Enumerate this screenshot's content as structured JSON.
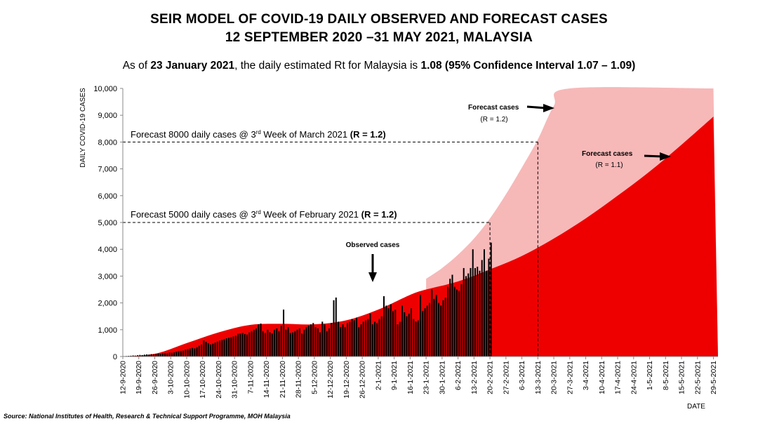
{
  "header": {
    "title_line1": "SEIR MODEL OF COVID-19 DAILY OBSERVED AND FORECAST CASES",
    "title_line2": "12 SEPTEMBER 2020 –31 MAY 2021, MALAYSIA",
    "subtitle_pre": "As of ",
    "subtitle_date": "23 January 2021",
    "subtitle_mid": ", the daily estimated Rt for Malaysia is ",
    "subtitle_rt": "1.08 (95% Confidence Interval 1.07 – 1.09)"
  },
  "source": "Source: National Institutes of Health, Research & Technical Support Programme, MOH Malaysia",
  "colors": {
    "forecast_r12": "#f7b8b8",
    "forecast_r11": "#ee0000",
    "observed_bar": "#000000"
  },
  "chart_data": {
    "type": "bar",
    "ylabel": "DAILY COVID-19 CASES",
    "xlabel": "DATE",
    "ylim": [
      0,
      10000
    ],
    "y_ticks": [
      "0",
      "1,000",
      "2,000",
      "3,000",
      "4,000",
      "5,000",
      "6,000",
      "7,000",
      "8,000",
      "9,000",
      "10,000"
    ],
    "x_tick_labels": [
      "12-9-2020",
      "19-9-2020",
      "26-9-2020",
      "3-10-2020",
      "10-10-2020",
      "17-10-2020",
      "24-10-2020",
      "31-10-2020",
      "7-11-2020",
      "14-11-2020",
      "21-11-2020",
      "28-11-2020",
      "5-12-2020",
      "12-12-2020",
      "19-12-2020",
      "26-12-2020",
      "2-1-2021",
      "9-1-2021",
      "16-1-2021",
      "23-1-2021",
      "30-1-2021",
      "6-2-2021",
      "13-2-2021",
      "20-2-2021",
      "27-2-2021",
      "6-3-2021",
      "13-3-2021",
      "20-3-2021",
      "27-3-2021",
      "3-4-2021",
      "10-4-2021",
      "17-4-2021",
      "24-4-2021",
      "1-5-2021",
      "8-5-2021",
      "15-5-2021",
      "22-5-2021",
      "29-5-2021"
    ],
    "observed_cases": [
      15,
      20,
      25,
      30,
      40,
      35,
      50,
      60,
      55,
      70,
      80,
      75,
      90,
      85,
      100,
      110,
      95,
      120,
      130,
      125,
      150,
      140,
      160,
      180,
      200,
      210,
      220,
      260,
      280,
      300,
      320,
      300,
      350,
      400,
      450,
      600,
      550,
      500,
      450,
      480,
      520,
      560,
      600,
      620,
      650,
      680,
      700,
      720,
      750,
      780,
      850,
      860,
      880,
      840,
      820,
      900,
      950,
      1000,
      1050,
      1200,
      1230,
      950,
      880,
      1000,
      900,
      860,
      1000,
      1050,
      950,
      1150,
      1750,
      1000,
      1100,
      880,
      900,
      950,
      1000,
      1050,
      850,
      1000,
      1100,
      1150,
      1200,
      1250,
      1100,
      1050,
      900,
      1300,
      1200,
      950,
      1050,
      1250,
      2100,
      2200,
      1300,
      1100,
      1200,
      1100,
      1250,
      1300,
      1400,
      1350,
      1450,
      1100,
      1200,
      1300,
      1350,
      1400,
      1600,
      1200,
      1300,
      1250,
      1400,
      1500,
      2250,
      1900,
      1800,
      1950,
      1700,
      1750,
      1200,
      1300,
      1900,
      1650,
      1500,
      1600,
      1800,
      1400,
      1300,
      1350,
      2300,
      1700,
      1800,
      1900,
      2000,
      2500,
      2150,
      2300,
      2000,
      1900,
      2100,
      2200,
      2600,
      2900,
      3050,
      2600,
      2500,
      2450,
      2700,
      3300,
      3000,
      3100,
      3300,
      4000,
      3300,
      3350,
      3200,
      3600,
      4000,
      3200,
      3650,
      4250
    ],
    "series": [
      {
        "name": "Forecast cases",
        "note": "(R = 1.2)",
        "r": 1.2
      },
      {
        "name": "Forecast cases",
        "note": "(R = 1.1)",
        "r": 1.1
      },
      {
        "name": "Observed cases"
      }
    ],
    "forecast_r11_curve": [
      {
        "date": "12-9-2020",
        "cases": 0
      },
      {
        "date": "26-9-2020",
        "cases": 100
      },
      {
        "date": "10-10-2020",
        "cases": 500
      },
      {
        "date": "24-10-2020",
        "cases": 900
      },
      {
        "date": "7-11-2020",
        "cases": 1180
      },
      {
        "date": "21-11-2020",
        "cases": 1220
      },
      {
        "date": "5-12-2020",
        "cases": 1200
      },
      {
        "date": "19-12-2020",
        "cases": 1350
      },
      {
        "date": "2-1-2021",
        "cases": 1750
      },
      {
        "date": "16-1-2021",
        "cases": 2300
      },
      {
        "date": "23-1-2021",
        "cases": 2500
      },
      {
        "date": "6-2-2021",
        "cases": 2800
      },
      {
        "date": "20-2-2021",
        "cases": 3250
      },
      {
        "date": "6-3-2021",
        "cases": 3750
      },
      {
        "date": "20-3-2021",
        "cases": 4400
      },
      {
        "date": "3-4-2021",
        "cases": 5150
      },
      {
        "date": "17-4-2021",
        "cases": 6000
      },
      {
        "date": "1-5-2021",
        "cases": 6900
      },
      {
        "date": "15-5-2021",
        "cases": 7900
      },
      {
        "date": "29-5-2021",
        "cases": 8950
      }
    ],
    "forecast_r12_curve": [
      {
        "date": "23-1-2021",
        "cases": 2900
      },
      {
        "date": "30-1-2021",
        "cases": 3300
      },
      {
        "date": "6-2-2021",
        "cases": 3800
      },
      {
        "date": "13-2-2021",
        "cases": 4400
      },
      {
        "date": "20-2-2021",
        "cases": 5150
      },
      {
        "date": "27-2-2021",
        "cases": 6050
      },
      {
        "date": "6-3-2021",
        "cases": 7050
      },
      {
        "date": "13-3-2021",
        "cases": 8100
      },
      {
        "date": "20-3-2021",
        "cases": 9350
      },
      {
        "date": "27-3-2021",
        "cases": 10000
      },
      {
        "date": "29-5-2021",
        "cases": 10000
      }
    ],
    "annotations": [
      {
        "id": "forecast_8000",
        "text_pre": "Forecast 8000 daily cases @ 3",
        "text_sup": "rd",
        "text_post": " Week of March 2021 ",
        "text_bold": "(R = 1.2)",
        "value": 8000,
        "date": "13-3-2021"
      },
      {
        "id": "forecast_5000",
        "text_pre": "Forecast 5000 daily cases @ 3",
        "text_sup": "rd",
        "text_post": " Week of February 2021 ",
        "text_bold": "(R = 1.2)",
        "value": 5000,
        "date": "20-2-2021"
      }
    ],
    "grid": false,
    "legend": "none"
  }
}
